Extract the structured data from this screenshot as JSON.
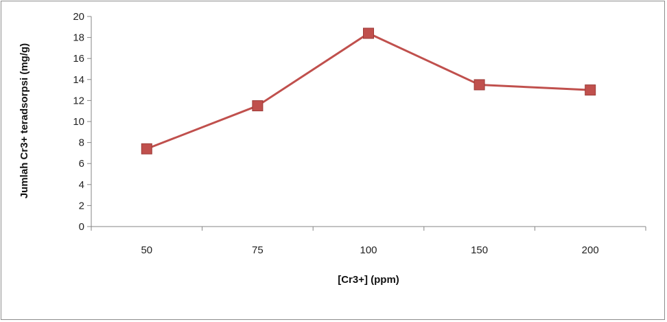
{
  "chart_data": {
    "type": "line",
    "title": "",
    "xlabel": "[Cr3+] (ppm)",
    "ylabel": "Jumlah Cr3+ teradsorpsi (mg/g)",
    "categories": [
      "50",
      "75",
      "100",
      "150",
      "200"
    ],
    "series": [
      {
        "values": [
          7.4,
          11.5,
          18.4,
          13.5,
          13.0
        ],
        "color": "#c0504d",
        "marker": "square"
      }
    ],
    "ylim": [
      0,
      20
    ],
    "yticks": [
      0,
      2,
      4,
      6,
      8,
      10,
      12,
      14,
      16,
      18,
      20
    ],
    "grid": false,
    "legend": "none"
  }
}
